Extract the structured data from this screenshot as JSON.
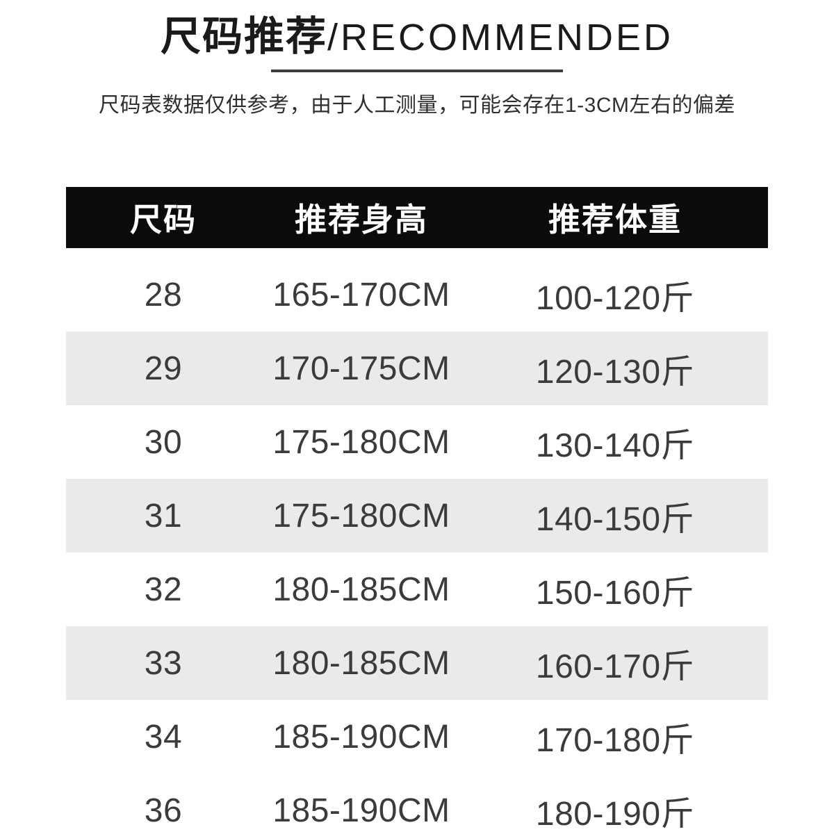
{
  "colors": {
    "page_bg": "#ffffff",
    "title_text": "#1a1a1a",
    "subtitle_text": "#2f2f2f",
    "underline": "#3d3d3d",
    "header_bg": "#0b0b0b",
    "header_text": "#ffffff",
    "row_alt_bg": "#eceae8",
    "cell_text": "#3b3b3b"
  },
  "title": {
    "cjk": "尺码推荐",
    "en": "/RECOMMENDED"
  },
  "subtitle": "尺码表数据仅供参考，由于人工测量，可能会存在1-3CM左右的偏差",
  "table": {
    "headers": [
      "尺码",
      "推荐身高",
      "推荐体重"
    ],
    "rows": [
      [
        "28",
        "165-170CM",
        "100-120斤"
      ],
      [
        "29",
        "170-175CM",
        "120-130斤"
      ],
      [
        "30",
        "175-180CM",
        "130-140斤"
      ],
      [
        "31",
        "175-180CM",
        "140-150斤"
      ],
      [
        "32",
        "180-185CM",
        "150-160斤"
      ],
      [
        "33",
        "180-185CM",
        "160-170斤"
      ],
      [
        "34",
        "185-190CM",
        "170-180斤"
      ],
      [
        "36",
        "185-190CM",
        "180-190斤"
      ]
    ],
    "alt_row_indexes": [
      1,
      3,
      5
    ]
  }
}
